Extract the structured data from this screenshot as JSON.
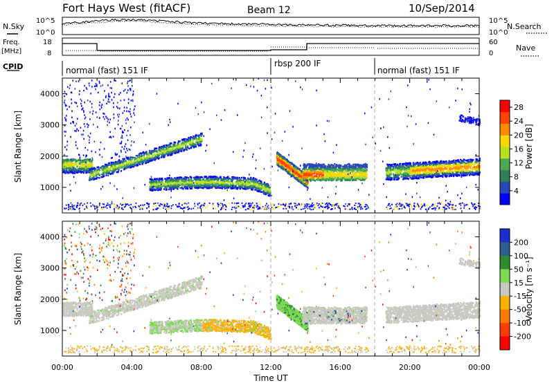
{
  "header": {
    "title": "Fort Hays West (fitACF)",
    "beam": "Beam 12",
    "date": "10/Sep/2014"
  },
  "labels": {
    "nsky": "N.Sky",
    "nsearch": "N.Search",
    "freq": "Freq.",
    "mhz": "[MHz]",
    "nave": "Nave",
    "cpid": "CPID",
    "noise_top_exp": "10^5",
    "noise_bottom_exp": "10^0",
    "freq_top": "18",
    "freq_bottom": "8",
    "nave_top": "60",
    "nave_bottom": "0"
  },
  "cpid_segments": [
    {
      "label": "normal (fast) 151 IF",
      "start_hour": 0
    },
    {
      "label": "rbsp 200 IF",
      "start_hour": 12
    },
    {
      "label": "normal (fast) 151 IF",
      "start_hour": 18
    }
  ],
  "colors": {
    "power": [
      "#0000ff",
      "#2a49b8",
      "#2f7f58",
      "#4ea957",
      "#b8e01e",
      "#ffd700",
      "#ff8c00",
      "#ff4500",
      "#ff0000"
    ],
    "velocity": [
      "#1c2fcc",
      "#2e5f8d",
      "#2e8b2e",
      "#7ed957",
      "#c8c8c0",
      "#ffb000",
      "#ff7a00",
      "#ff3c00",
      "#ff0000"
    ]
  },
  "chart_data": [
    {
      "type": "heatmap",
      "panel": "power",
      "xlabel": "",
      "ylabel": "Slant Range [km]",
      "xlim": [
        0,
        24
      ],
      "ylim": [
        180,
        4500
      ],
      "yticks": [
        1000,
        2000,
        3000,
        4000
      ],
      "colorbar_label": "Power [dB]",
      "colorbar_ticks": [
        4,
        8,
        12,
        16,
        20,
        24,
        28
      ],
      "colorbar_range": [
        0,
        30
      ]
    },
    {
      "type": "heatmap",
      "panel": "velocity",
      "xlabel": "Time UT",
      "ylabel": "Slant Range [km]",
      "xlim": [
        0,
        24
      ],
      "ylim": [
        180,
        4500
      ],
      "xticks": [
        "00:00",
        "04:00",
        "08:00",
        "12:00",
        "16:00",
        "20:00",
        "00:00"
      ],
      "yticks": [
        1000,
        2000,
        3000,
        4000
      ],
      "colorbar_label": "Velocity [m s⁻¹]",
      "colorbar_ticks": [
        "200",
        "100",
        "50",
        "15",
        "-15",
        "-50",
        "-100",
        "-200"
      ]
    }
  ]
}
